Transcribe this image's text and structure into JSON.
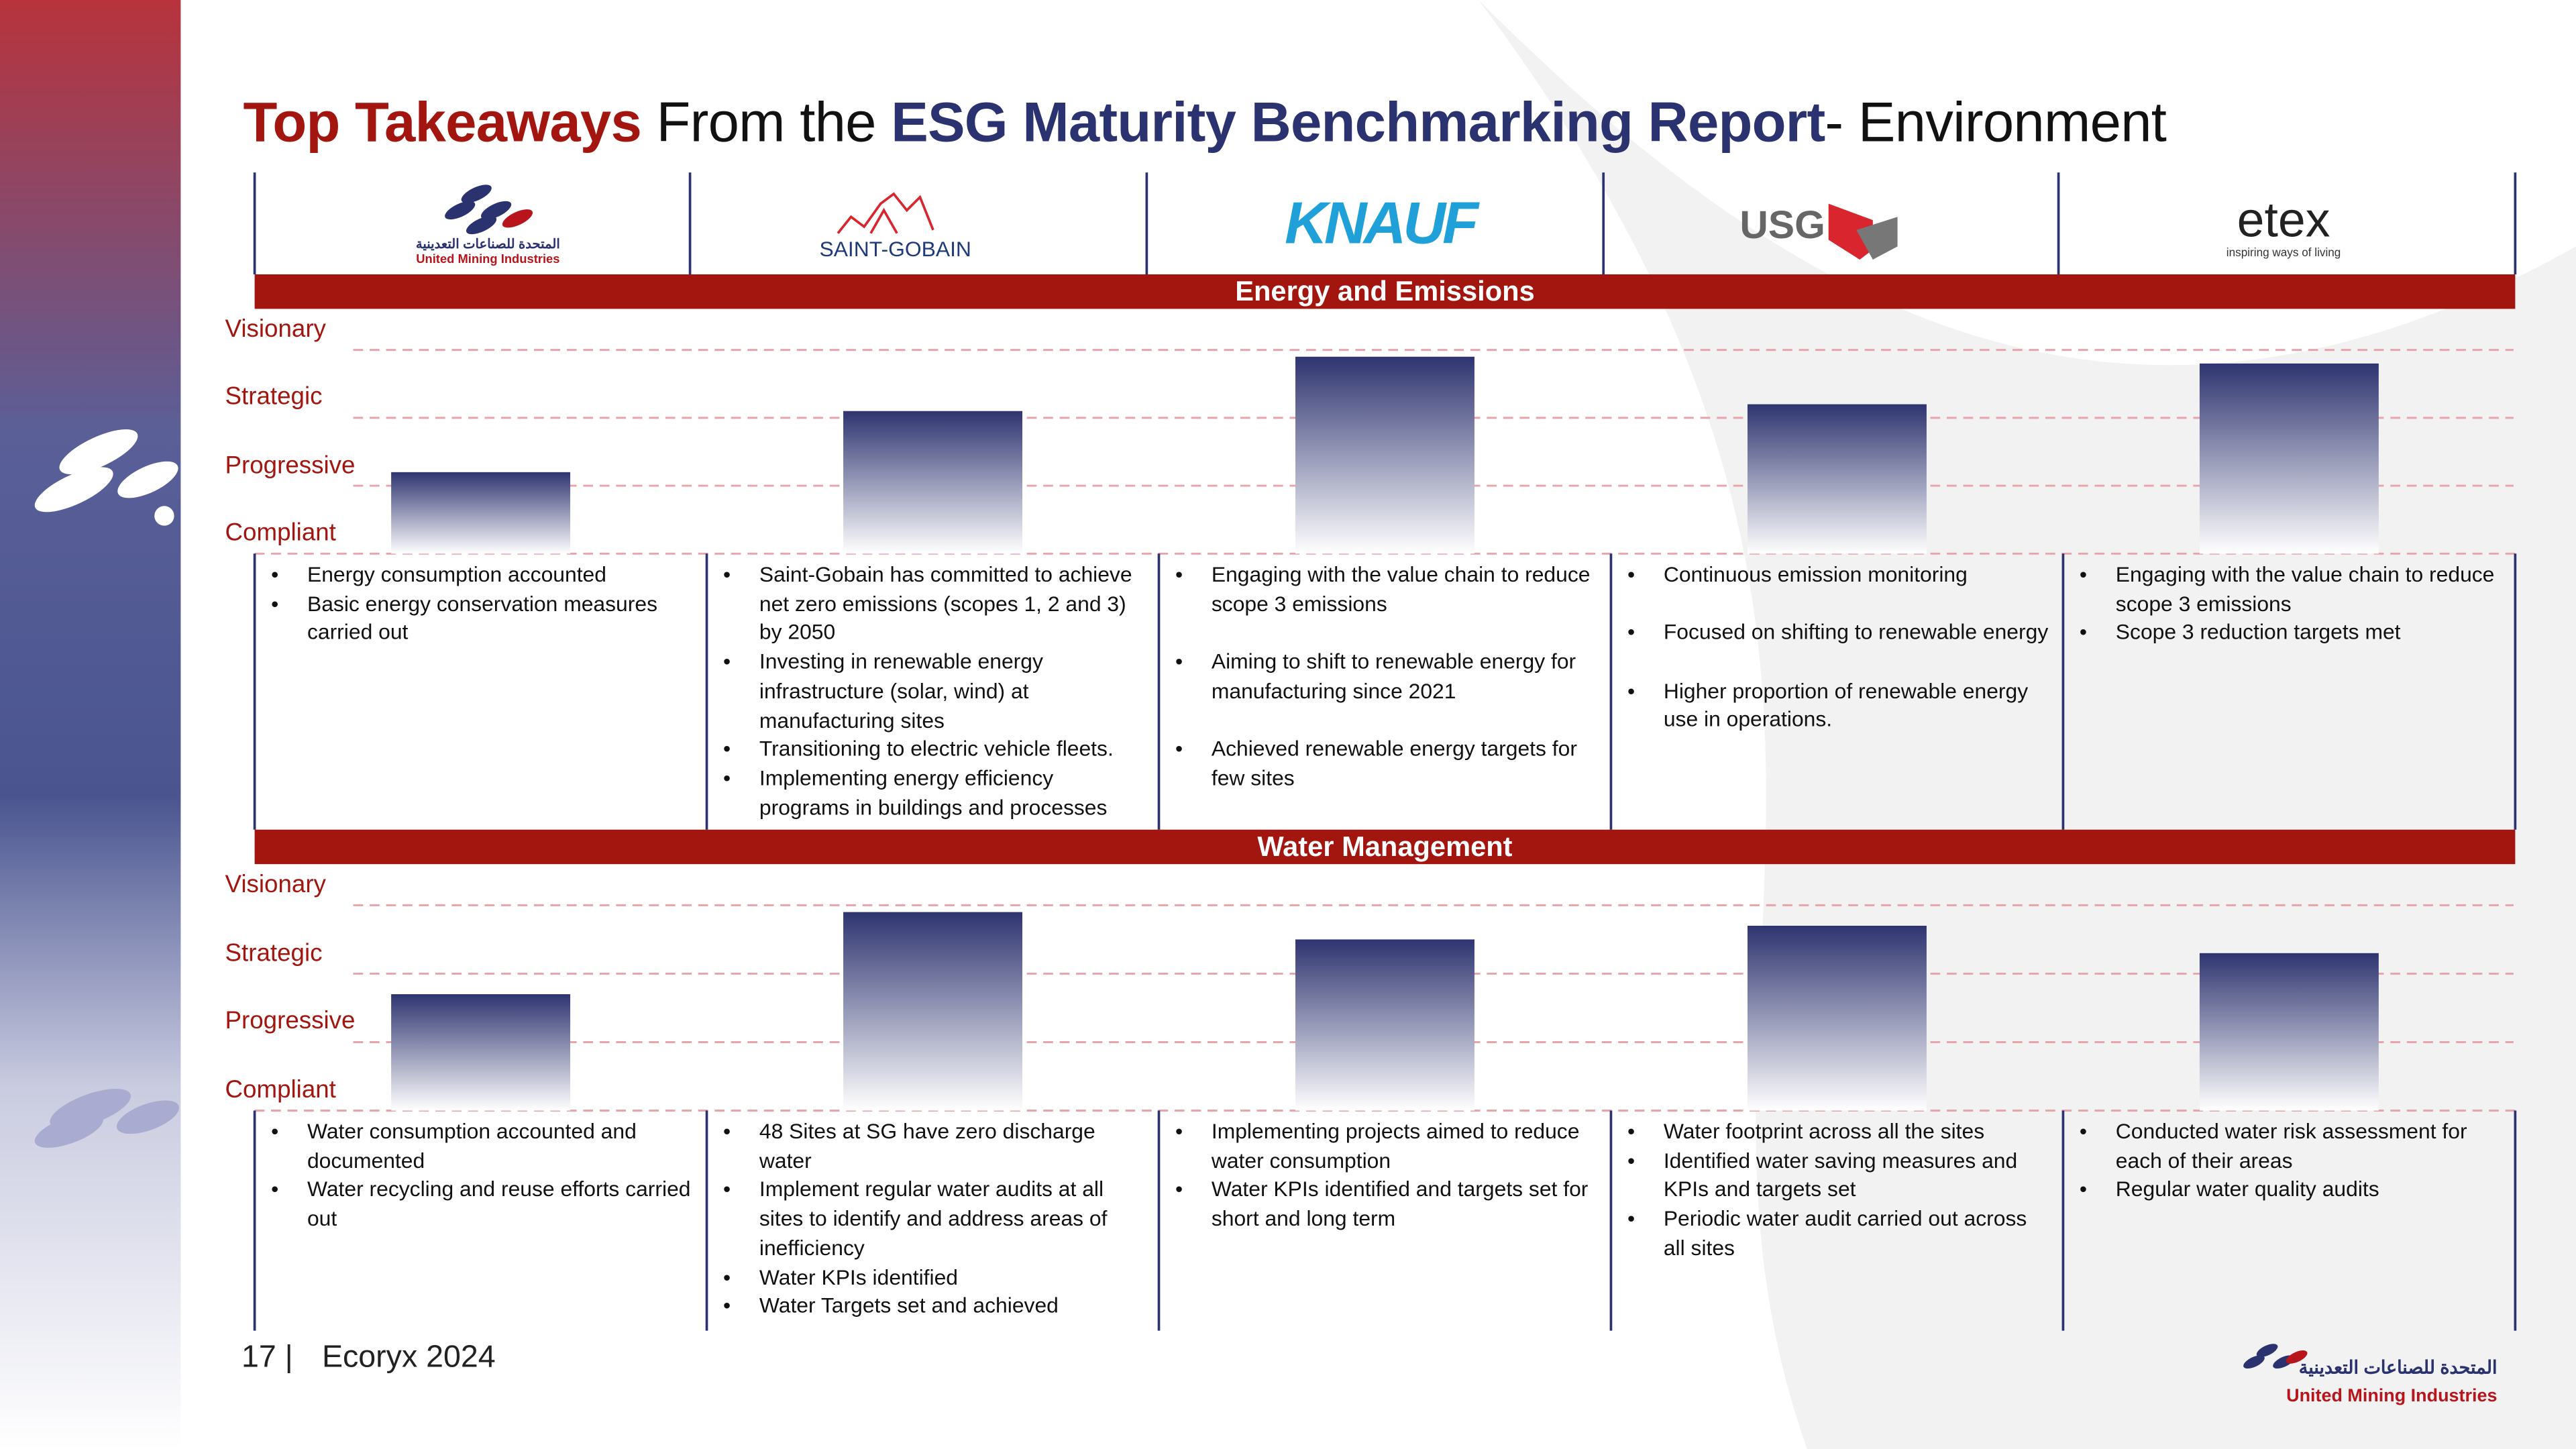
{
  "header": {
    "title": {
      "part1": "Top Takeaways",
      "part2": "From the",
      "part3": "ESG Maturity Benchmarking Report",
      "part4": "- Environment"
    }
  },
  "companies": [
    {
      "name": "United Mining Industries",
      "arabic": "المتحدة للصناعات التعدينية"
    },
    {
      "name": "SAINT-GOBAIN"
    },
    {
      "name": "KNAUF"
    },
    {
      "name": "USG"
    },
    {
      "name": "etex",
      "tagline": "inspiring ways of living"
    }
  ],
  "sections": [
    {
      "title": "Energy and Emissions",
      "chart": {
        "type": "bar",
        "ylim": [
          0,
          3
        ],
        "yticks": [
          {
            "value": 0,
            "label": "Compliant"
          },
          {
            "value": 1,
            "label": "Progressive"
          },
          {
            "value": 2,
            "label": "Strategic"
          },
          {
            "value": 3,
            "label": "Visionary"
          }
        ],
        "values": [
          1.2,
          2.1,
          2.9,
          2.2,
          2.8
        ],
        "grid": true
      },
      "notes": [
        [
          "Energy consumption accounted",
          "Basic energy conservation measures carried out"
        ],
        [
          "Saint-Gobain has committed to achieve net zero emissions (scopes 1, 2 and 3) by 2050",
          "Investing in renewable energy infrastructure (solar, wind) at manufacturing sites",
          "Transitioning to electric vehicle fleets.",
          "Implementing energy efficiency programs in buildings and processes"
        ],
        [
          "Engaging with the value chain to reduce scope 3 emissions",
          "Aiming to shift to renewable energy for manufacturing  since 2021",
          "Achieved renewable energy targets for few sites"
        ],
        [
          "Continuous emission monitoring",
          "Focused on shifting to renewable energy",
          "Higher proportion of renewable energy use in operations."
        ],
        [
          "Engaging with the value chain to reduce scope 3 emissions",
          "Scope 3 reduction targets met"
        ]
      ]
    },
    {
      "title": "Water Management",
      "chart": {
        "type": "bar",
        "ylim": [
          0,
          3
        ],
        "yticks": [
          {
            "value": 0,
            "label": "Compliant"
          },
          {
            "value": 1,
            "label": "Progressive"
          },
          {
            "value": 2,
            "label": "Strategic"
          },
          {
            "value": 3,
            "label": "Visionary"
          }
        ],
        "values": [
          1.7,
          2.9,
          2.5,
          2.7,
          2.3
        ],
        "grid": true
      },
      "notes": [
        [
          "Water consumption accounted and documented",
          "Water recycling and reuse efforts carried out"
        ],
        [
          "48 Sites at SG have zero discharge water",
          "Implement regular water audits at all sites to identify and address areas of inefficiency",
          "Water KPIs identified",
          "Water Targets set and achieved"
        ],
        [
          "Implementing projects aimed to reduce water consumption",
          "Water KPIs identified and targets set for short and long term"
        ],
        [
          "Water footprint across all the sites",
          "Identified water saving measures and KPIs and targets set",
          "Periodic water audit carried out across all sites"
        ],
        [
          "Conducted water risk assessment for each of their areas",
          "Regular water quality audits"
        ]
      ]
    }
  ],
  "footer": {
    "page": "17 |",
    "text": "Ecoryx 2024",
    "logo_arabic": "المتحدة للصناعات التعدينية",
    "logo_name": "United Mining Industries"
  }
}
